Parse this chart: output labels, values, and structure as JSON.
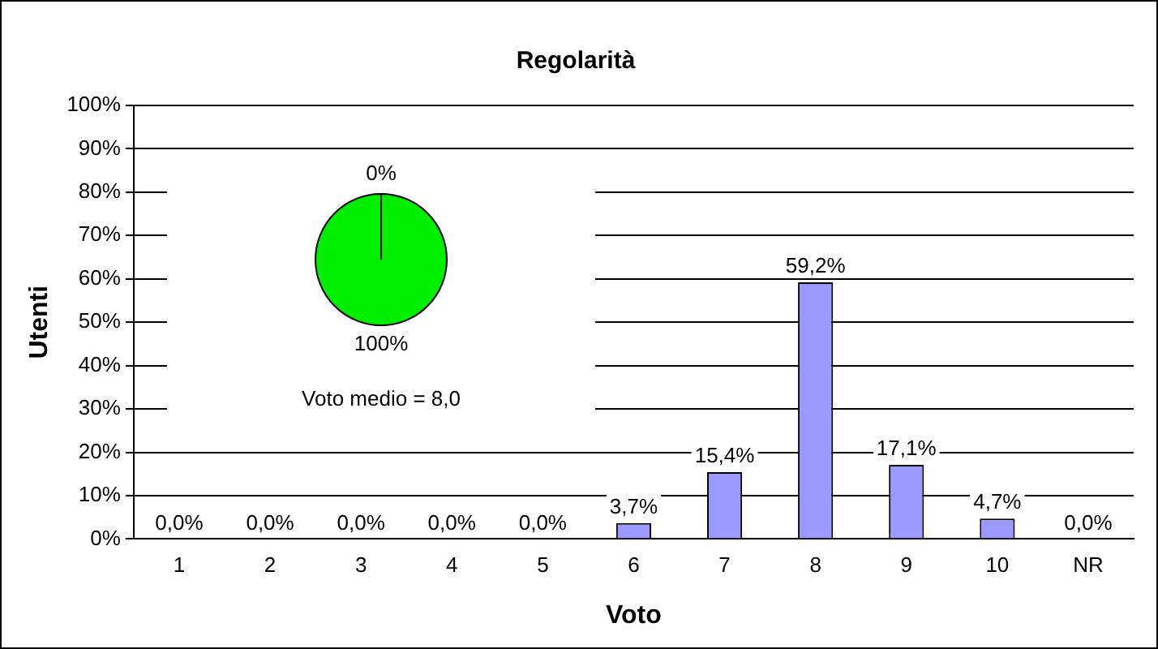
{
  "chart_data": [
    {
      "type": "bar",
      "title": "Regolarità",
      "xlabel": "Voto",
      "ylabel": "Utenti",
      "categories": [
        "1",
        "2",
        "3",
        "4",
        "5",
        "6",
        "7",
        "8",
        "9",
        "10",
        "NR"
      ],
      "values": [
        0,
        0,
        0,
        0,
        0,
        3.7,
        15.4,
        59.2,
        17.1,
        4.7,
        0
      ],
      "value_labels": [
        "0,0%",
        "0,0%",
        "0,0%",
        "0,0%",
        "0,0%",
        "3,7%",
        "15,4%",
        "59,2%",
        "17,1%",
        "4,7%",
        "0,0%"
      ],
      "color": "#9999ff",
      "ylim": [
        0,
        100
      ],
      "yticks": [
        {
          "value": 0,
          "label": "0%"
        },
        {
          "value": 10,
          "label": "10%"
        },
        {
          "value": 20,
          "label": "20%"
        },
        {
          "value": 30,
          "label": "30%"
        },
        {
          "value": 40,
          "label": "40%"
        },
        {
          "value": 50,
          "label": "50%"
        },
        {
          "value": 60,
          "label": "60%"
        },
        {
          "value": 70,
          "label": "70%"
        },
        {
          "value": 80,
          "label": "80%"
        },
        {
          "value": 90,
          "label": "90%"
        },
        {
          "value": 100,
          "label": "100%"
        }
      ],
      "grid": "y",
      "legend": false
    },
    {
      "type": "pie",
      "categories": [
        null,
        null
      ],
      "values": [
        0,
        100
      ],
      "colors": [
        "#00aa00",
        "#00ee00"
      ],
      "value_labels": [
        "0%",
        "100%"
      ],
      "annotations": [
        "Voto medio = 8,0"
      ],
      "legend": false
    }
  ]
}
